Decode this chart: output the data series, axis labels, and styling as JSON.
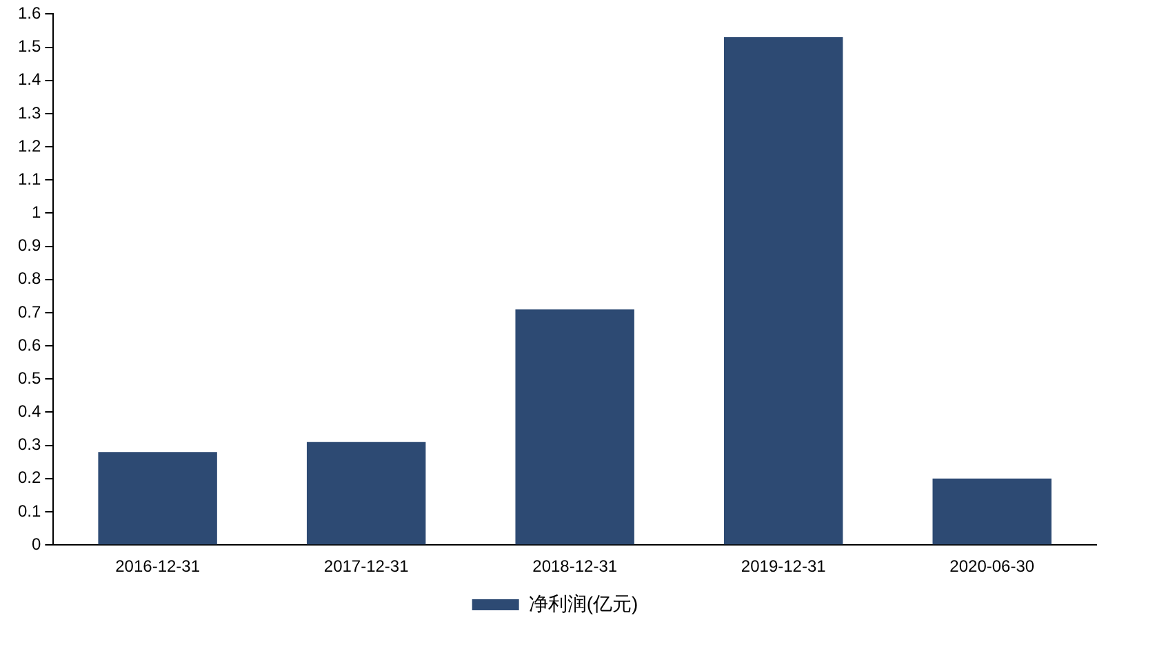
{
  "chart_data": {
    "type": "bar",
    "categories": [
      "2016-12-31",
      "2017-12-31",
      "2018-12-31",
      "2019-12-31",
      "2020-06-30"
    ],
    "series": [
      {
        "name": "净利润(亿元)",
        "color": "#2d4a73",
        "values": [
          0.28,
          0.31,
          0.71,
          1.53,
          0.2
        ]
      }
    ],
    "ylim": [
      0,
      1.6
    ],
    "yticks": [
      0,
      0.1,
      0.2,
      0.3,
      0.4,
      0.5,
      0.6,
      0.7,
      0.8,
      0.9,
      1,
      1.1,
      1.2,
      1.3,
      1.4,
      1.5,
      1.6
    ],
    "grid": false,
    "legend": "bottom"
  }
}
